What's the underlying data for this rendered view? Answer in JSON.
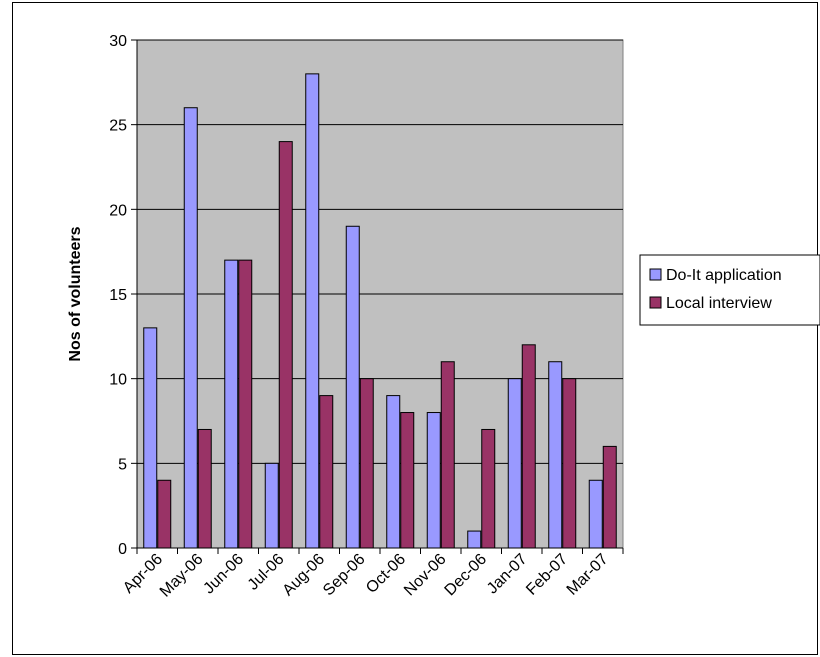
{
  "chart_data": {
    "type": "bar",
    "title": "",
    "xlabel": "",
    "ylabel": "Nos of volunteers",
    "ylim": [
      0,
      30
    ],
    "yticks": [
      0,
      5,
      10,
      15,
      20,
      25,
      30
    ],
    "grid": true,
    "legend_position": "right",
    "plot_background": "#c0c0c0",
    "categories": [
      "Apr-06",
      "May-06",
      "Jun-06",
      "Jul-06",
      "Aug-06",
      "Sep-06",
      "Oct-06",
      "Nov-06",
      "Dec-06",
      "Jan-07",
      "Feb-07",
      "Mar-07"
    ],
    "series": [
      {
        "name": "Do-It application",
        "color": "#9999ff",
        "values": [
          13,
          26,
          17,
          5,
          28,
          19,
          9,
          8,
          1,
          10,
          11,
          4
        ]
      },
      {
        "name": "Local interview",
        "color": "#993366",
        "values": [
          4,
          7,
          17,
          24,
          9,
          10,
          8,
          11,
          7,
          12,
          10,
          6
        ]
      }
    ]
  }
}
